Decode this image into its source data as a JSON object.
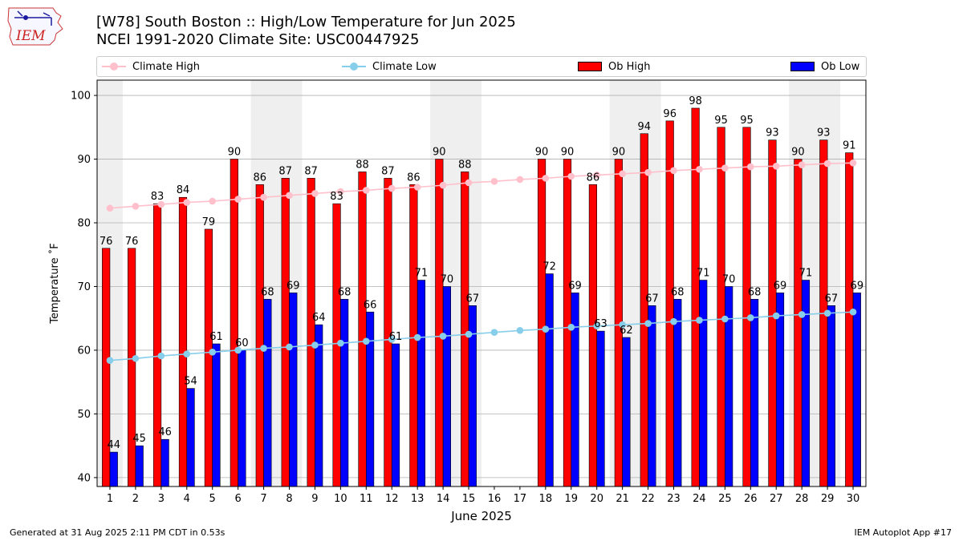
{
  "header": {
    "title_line1": "[W78] South Boston :: High/Low Temperature for Jun 2025",
    "title_line2": "NCEI 1991-2020 Climate Site: USC00447925",
    "logo_text": "IEM"
  },
  "legend": {
    "placement": "top, above plot",
    "items": [
      {
        "label": "Climate High",
        "kind": "line",
        "color": "#ffc0cb"
      },
      {
        "label": "Climate Low",
        "kind": "line",
        "color": "#87ceeb"
      },
      {
        "label": "Ob High",
        "kind": "bar",
        "color": "#ff0000"
      },
      {
        "label": "Ob Low",
        "kind": "bar",
        "color": "#0000ff"
      }
    ]
  },
  "footer": {
    "left": "Generated at 31 Aug 2025 2:11 PM CDT in 0.53s",
    "right": "IEM Autoplot App #17"
  },
  "chart_data": {
    "type": "bar",
    "title": "[W78] South Boston :: High/Low Temperature for Jun 2025",
    "subtitle": "NCEI 1991-2020 Climate Site: USC00447925",
    "xlabel": "June 2025",
    "ylabel": "Temperature ˚F",
    "ylim": [
      38.6,
      102.4
    ],
    "yticks": [
      40,
      50,
      60,
      70,
      80,
      90,
      100
    ],
    "grid": "horizontal",
    "weekend_shading_days": [
      1,
      7,
      8,
      14,
      15,
      21,
      22,
      28,
      29
    ],
    "categories": [
      1,
      2,
      3,
      4,
      5,
      6,
      7,
      8,
      9,
      10,
      11,
      12,
      13,
      14,
      15,
      16,
      17,
      18,
      19,
      20,
      21,
      22,
      23,
      24,
      25,
      26,
      27,
      28,
      29,
      30
    ],
    "series": [
      {
        "name": "Ob High",
        "type": "bar",
        "color": "#ff0000",
        "values": [
          76,
          76,
          83,
          84,
          79,
          90,
          86,
          87,
          87,
          83,
          88,
          87,
          86,
          90,
          88,
          null,
          null,
          90,
          90,
          86,
          90,
          94,
          96,
          98,
          95,
          95,
          93,
          90,
          93,
          91
        ]
      },
      {
        "name": "Ob Low",
        "type": "bar",
        "color": "#0000ff",
        "values": [
          44,
          45,
          46,
          54,
          61,
          60,
          68,
          69,
          64,
          68,
          66,
          61,
          71,
          70,
          67,
          null,
          null,
          72,
          69,
          63,
          62,
          67,
          68,
          71,
          70,
          68,
          69,
          71,
          67,
          69
        ]
      },
      {
        "name": "Climate High",
        "type": "line",
        "color": "#ffc0cb",
        "values": [
          82.3,
          82.6,
          82.9,
          83.2,
          83.4,
          83.7,
          84.0,
          84.3,
          84.6,
          84.9,
          85.1,
          85.4,
          85.6,
          85.9,
          86.3,
          86.5,
          86.8,
          87.0,
          87.3,
          87.5,
          87.7,
          87.9,
          88.2,
          88.4,
          88.6,
          88.8,
          88.9,
          89.1,
          89.3,
          89.4
        ]
      },
      {
        "name": "Climate Low",
        "type": "line",
        "color": "#87ceeb",
        "values": [
          58.4,
          58.7,
          59.1,
          59.4,
          59.7,
          60.0,
          60.3,
          60.5,
          60.8,
          61.1,
          61.4,
          61.7,
          62.0,
          62.2,
          62.5,
          62.8,
          63.1,
          63.3,
          63.6,
          63.8,
          64.0,
          64.2,
          64.5,
          64.7,
          64.9,
          65.1,
          65.4,
          65.6,
          65.8,
          66.0
        ]
      }
    ]
  }
}
